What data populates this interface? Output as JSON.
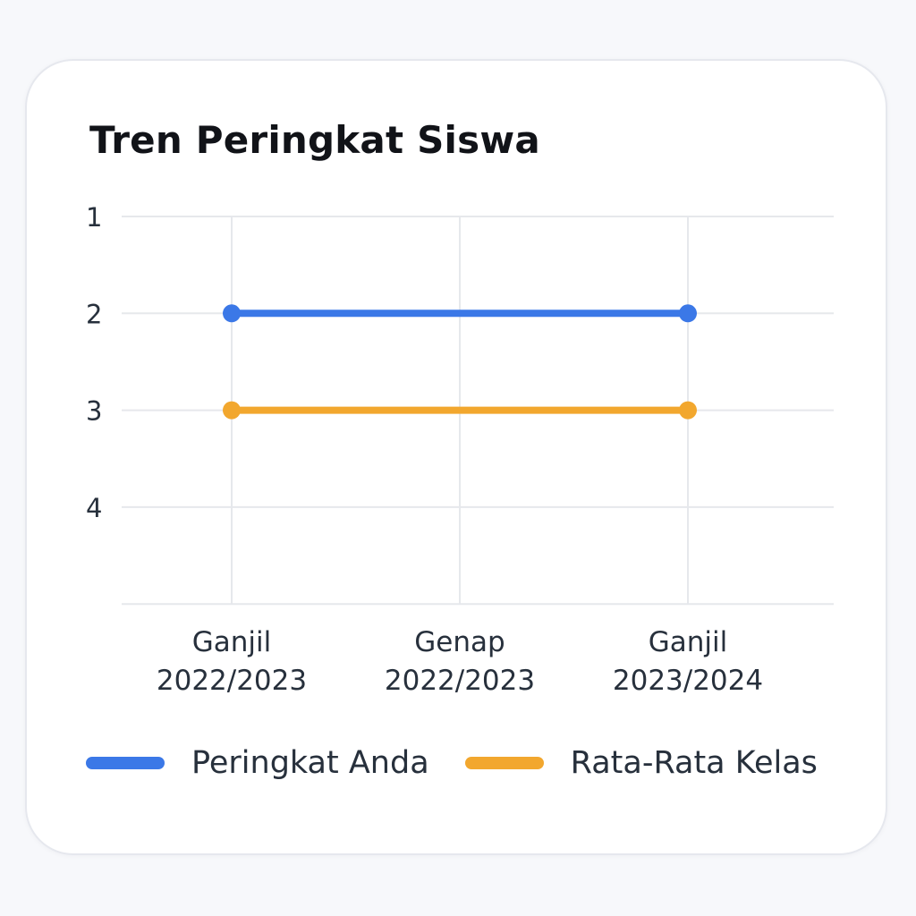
{
  "chart_data": {
    "type": "line",
    "title": "Tren Peringkat Siswa",
    "categories": [
      [
        "Ganjil",
        "2022/2023"
      ],
      [
        "Genap",
        "2022/2023"
      ],
      [
        "Ganjil",
        "2023/2024"
      ]
    ],
    "y_ticks": [
      "1",
      "2",
      "3",
      "4"
    ],
    "ylim": [
      1,
      5
    ],
    "y_inverted": true,
    "grid": true,
    "legend_position": "bottom-left",
    "series": [
      {
        "name": "Peringkat Anda",
        "color": "#3b78e7",
        "values": [
          2,
          null,
          2
        ]
      },
      {
        "name": "Rata-Rata Kelas",
        "color": "#f2a72e",
        "values": [
          3,
          null,
          3
        ]
      }
    ]
  }
}
